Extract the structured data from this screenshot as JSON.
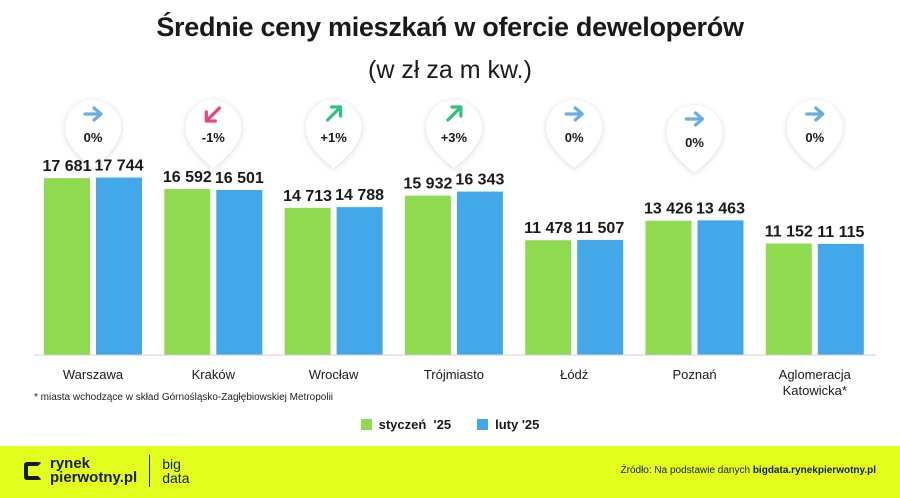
{
  "colors": {
    "january": "#8fda4f",
    "february": "#42a8ea",
    "accent": "#e2ff1e",
    "up": "#2ec27e",
    "down": "#e8457a",
    "flat": "#6aaee0"
  },
  "chart_data": {
    "type": "bar",
    "title": "Średnie ceny mieszkań w ofercie deweloperów",
    "subtitle": "(w zł za m kw.)",
    "categories": [
      "Warszawa",
      "Kraków",
      "Wrocław",
      "Trójmiasto",
      "Łódź",
      "Poznań",
      "Aglomeracja Katowicka*"
    ],
    "category_lines": [
      [
        "Warszawa"
      ],
      [
        "Kraków"
      ],
      [
        "Wrocław"
      ],
      [
        "Trójmiasto"
      ],
      [
        "Łódź"
      ],
      [
        "Poznań"
      ],
      [
        "Aglomeracja",
        "Katowicka*"
      ]
    ],
    "series": [
      {
        "name": "styczeń  '25",
        "values": [
          17681,
          16592,
          14713,
          15932,
          11478,
          13426,
          11152
        ],
        "labels": [
          "17 681",
          "16 592",
          "14 713",
          "15 932",
          "11 478",
          "13 426",
          "11 152"
        ]
      },
      {
        "name": "luty '25",
        "values": [
          17744,
          16501,
          14788,
          16343,
          11507,
          13463,
          11115
        ],
        "labels": [
          "17 744",
          "16 501",
          "14 788",
          "16 343",
          "11 507",
          "13 463",
          "11 115"
        ]
      }
    ],
    "changes": [
      "0%",
      "-1%",
      "+1%",
      "+3%",
      "0%",
      "0%",
      "0%"
    ],
    "change_direction": [
      "flat",
      "down",
      "up",
      "up",
      "flat",
      "flat",
      "flat"
    ],
    "ylim": [
      0,
      19000
    ],
    "grid": false,
    "legend": "bottom"
  },
  "footnote": "* miasta wchodzące w skład Górnośląsko-Zagłębiowskiej Metropolii",
  "footer": {
    "logo_line1": "rynek",
    "logo_line2": "pierwotny.pl",
    "logo_big1": "big",
    "logo_big2": "data",
    "source_prefix": "Źródło: Na podstawie danych",
    "source_link": "bigdata.rynekpierwotny.pl"
  }
}
